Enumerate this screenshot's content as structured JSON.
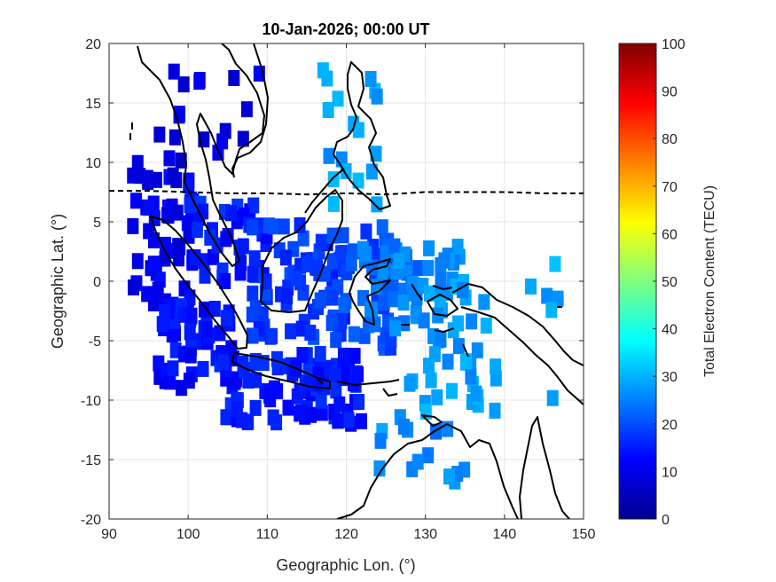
{
  "chart_data": {
    "type": "heatmap",
    "title": "10-Jan-2026; 00:00 UT",
    "xlabel": "Geographic Lon. (°)",
    "ylabel": "Geographic Lat. (°)",
    "xlim": [
      90,
      150
    ],
    "ylim": [
      -20,
      20
    ],
    "xticks": [
      90,
      100,
      110,
      120,
      130,
      140,
      150
    ],
    "yticks": [
      -20,
      -15,
      -10,
      -5,
      0,
      5,
      10,
      15,
      20
    ],
    "grid": true,
    "colorbar": {
      "label": "Total Electron Content (TECU)",
      "range": [
        0,
        100
      ],
      "ticks": [
        0,
        10,
        20,
        30,
        40,
        50,
        60,
        70,
        80,
        90,
        100
      ],
      "colormap": "jet"
    },
    "dip_equator": [
      [
        90,
        7.6
      ],
      [
        95,
        7.6
      ],
      [
        100,
        7.5
      ],
      [
        105,
        7.4
      ],
      [
        110,
        7.4
      ],
      [
        115,
        7.3
      ],
      [
        120,
        7.4
      ],
      [
        125,
        7.3
      ],
      [
        130,
        7.5
      ],
      [
        135,
        7.5
      ],
      [
        140,
        7.5
      ],
      [
        145,
        7.4
      ],
      [
        150,
        7.4
      ]
    ],
    "tec_clusters": [
      {
        "lon": [
          93,
          101
        ],
        "lat": [
          -4,
          10
        ],
        "tec": 11,
        "n": 55
      },
      {
        "lon": [
          96,
          106
        ],
        "lat": [
          -9,
          -2
        ],
        "tec": 13,
        "n": 50
      },
      {
        "lon": [
          104,
          122
        ],
        "lat": [
          -12,
          -6
        ],
        "tec": 15,
        "n": 90
      },
      {
        "lon": [
          100,
          110
        ],
        "lat": [
          0,
          7
        ],
        "tec": 15,
        "n": 40
      },
      {
        "lon": [
          108,
          120
        ],
        "lat": [
          -5,
          5
        ],
        "tec": 18,
        "n": 70
      },
      {
        "lon": [
          118,
          126
        ],
        "lat": [
          -6,
          5
        ],
        "tec": 20,
        "n": 40
      },
      {
        "lon": [
          122,
          130
        ],
        "lat": [
          -4,
          3
        ],
        "tec": 24,
        "n": 35
      },
      {
        "lon": [
          126,
          136
        ],
        "lat": [
          -5,
          3
        ],
        "tec": 27,
        "n": 35
      },
      {
        "lon": [
          128,
          137
        ],
        "lat": [
          -11,
          -5
        ],
        "tec": 28,
        "n": 20
      },
      {
        "lon": [
          124,
          135
        ],
        "lat": [
          -17,
          -11
        ],
        "tec": 26,
        "n": 15
      },
      {
        "lon": [
          117,
          124
        ],
        "lat": [
          5,
          18
        ],
        "tec": 28,
        "n": 18
      },
      {
        "lon": [
          96,
          110
        ],
        "lat": [
          10,
          20
        ],
        "tec": 10,
        "n": 18
      },
      {
        "lon": [
          135,
          148
        ],
        "lat": [
          -12,
          2
        ],
        "tec": 29,
        "n": 12
      }
    ]
  }
}
